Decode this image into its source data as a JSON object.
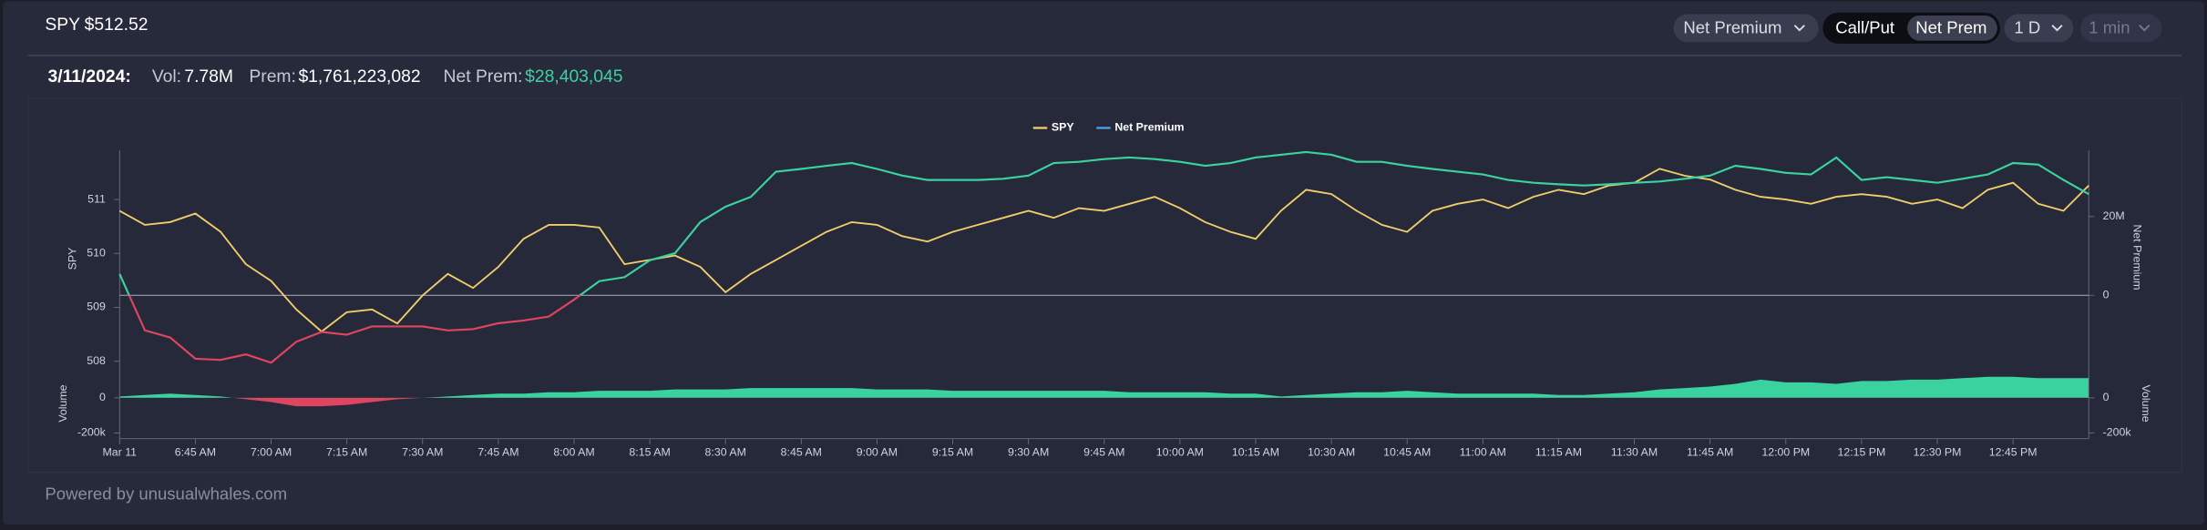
{
  "header": {
    "symbol": "SPY",
    "price": "$512.52",
    "controls": {
      "metric": "Net Premium",
      "toggle": [
        "Call/Put",
        "Net Prem"
      ],
      "range": "1 D",
      "interval": "1 min"
    }
  },
  "summary": {
    "date": "3/11/2024:",
    "vol_label": "Vol:",
    "vol": "7.78M",
    "prem_label": "Prem:",
    "prem": "$1,761,223,082",
    "net_prem_label": "Net Prem:",
    "net_prem": "$28,403,045",
    "net_prem_color": "#3ad29f"
  },
  "chart_data": [
    {
      "type": "line",
      "categories": [
        "Mar 11",
        null,
        null,
        "6:45 AM",
        null,
        null,
        "7:00 AM",
        null,
        null,
        "7:15 AM",
        null,
        null,
        "7:30 AM",
        null,
        null,
        "7:45 AM",
        null,
        null,
        "8:00 AM",
        null,
        null,
        "8:15 AM",
        null,
        null,
        "8:30 AM",
        null,
        null,
        "8:45 AM",
        null,
        null,
        "9:00 AM",
        null,
        null,
        "9:15 AM",
        null,
        null,
        "9:30 AM",
        null,
        null,
        "9:45 AM",
        null,
        null,
        "10:00 AM",
        null,
        null,
        "10:15 AM",
        null,
        null,
        "10:30 AM",
        null,
        null,
        "10:45 AM",
        null,
        null,
        "11:00 AM",
        null,
        null,
        "11:15 AM",
        null,
        null,
        "11:30 AM",
        null,
        null,
        "11:45 AM",
        null,
        null,
        "12:00 PM",
        null,
        null,
        "12:15 PM",
        null,
        null,
        "12:30 PM",
        null,
        null,
        "12:45 PM",
        null,
        null,
        null
      ],
      "ylabel": "SPY",
      "y2label": "Net Premium",
      "ylim": [
        507.66,
        511.91
      ],
      "yticks": [
        508,
        509,
        510,
        511
      ],
      "y2lim": [
        -21400000,
        36800000
      ],
      "y2ticks": [
        0,
        {
          "value": 20000000,
          "label": "20M"
        }
      ],
      "zero_line": true,
      "legend": "top",
      "series": [
        {
          "name": "SPY",
          "color": "#f2cd6b",
          "axis": "y",
          "values": [
            510.79,
            510.53,
            510.58,
            510.74,
            510.4,
            509.8,
            509.49,
            508.96,
            508.55,
            508.91,
            508.96,
            508.7,
            509.22,
            509.62,
            509.36,
            509.75,
            510.27,
            510.53,
            510.53,
            510.48,
            509.8,
            509.88,
            509.96,
            509.75,
            509.28,
            509.62,
            509.88,
            510.14,
            510.4,
            510.58,
            510.53,
            510.32,
            510.22,
            510.4,
            510.53,
            510.66,
            510.79,
            510.66,
            510.84,
            510.79,
            510.92,
            511.05,
            510.84,
            510.58,
            510.4,
            510.27,
            510.79,
            511.18,
            511.1,
            510.79,
            510.53,
            510.4,
            510.79,
            510.92,
            511.0,
            510.84,
            511.05,
            511.18,
            511.1,
            511.26,
            511.31,
            511.57,
            511.44,
            511.37,
            511.18,
            511.05,
            511.0,
            510.92,
            511.05,
            511.1,
            511.05,
            510.92,
            511.0,
            510.84,
            511.18,
            511.31,
            510.92,
            510.79,
            511.26
          ]
        },
        {
          "name": "Net Premium",
          "color": "#4da3e8",
          "axis": "y2",
          "positive_color": "#3ad29f",
          "negative_color": "#e0455f",
          "values": [
            5400000,
            -8900000,
            -10700000,
            -16100000,
            -16400000,
            -15000000,
            -17100000,
            -11800000,
            -9300000,
            -10000000,
            -7900000,
            -7900000,
            -7900000,
            -8900000,
            -8600000,
            -7100000,
            -6400000,
            -5400000,
            -1100000,
            3600000,
            4600000,
            8900000,
            10700000,
            18600000,
            22500000,
            25000000,
            31400000,
            32100000,
            32900000,
            33600000,
            32100000,
            30400000,
            29300000,
            29300000,
            29300000,
            29600000,
            30400000,
            33600000,
            33900000,
            34600000,
            35000000,
            34600000,
            33900000,
            32900000,
            33600000,
            35000000,
            35700000,
            36400000,
            35700000,
            33900000,
            33900000,
            32900000,
            32100000,
            31400000,
            30700000,
            29300000,
            28600000,
            28200000,
            27900000,
            28200000,
            28600000,
            28900000,
            29600000,
            30400000,
            32900000,
            32100000,
            31100000,
            30700000,
            35000000,
            29300000,
            30000000,
            29300000,
            28600000,
            29600000,
            30700000,
            33600000,
            33200000,
            29300000,
            25700000
          ]
        }
      ]
    },
    {
      "type": "area",
      "ylabel": "Volume",
      "y2label": "Volume",
      "ylim": [
        -232000,
        160000
      ],
      "yticks": [
        0,
        {
          "value": -200000,
          "label": "-200k"
        }
      ],
      "y2ticks": [
        0,
        {
          "value": -200000,
          "label": "-200k"
        }
      ],
      "positive_color": "#3ad29f",
      "negative_color": "#e0455f",
      "values": [
        8000,
        16000,
        24000,
        16000,
        8000,
        -8000,
        -24000,
        -48000,
        -48000,
        -40000,
        -24000,
        -8000,
        0,
        8000,
        16000,
        24000,
        24000,
        32000,
        32000,
        40000,
        40000,
        40000,
        48000,
        48000,
        48000,
        56000,
        56000,
        56000,
        56000,
        56000,
        48000,
        48000,
        48000,
        40000,
        40000,
        40000,
        40000,
        40000,
        40000,
        40000,
        32000,
        32000,
        32000,
        32000,
        24000,
        24000,
        8000,
        16000,
        24000,
        32000,
        32000,
        40000,
        32000,
        24000,
        24000,
        24000,
        24000,
        16000,
        16000,
        24000,
        32000,
        48000,
        56000,
        64000,
        80000,
        104000,
        88000,
        88000,
        80000,
        96000,
        96000,
        104000,
        104000,
        112000,
        120000,
        120000,
        112000,
        112000,
        112000
      ]
    }
  ],
  "footer": "Powered by unusualwhales.com"
}
